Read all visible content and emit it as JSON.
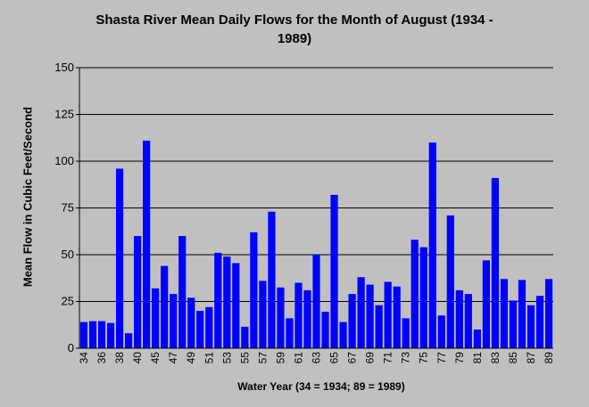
{
  "chart_data": {
    "type": "bar",
    "title": "Shasta River Mean Daily Flows for the Month of August (1934 - 1989)",
    "title_lines": [
      "Shasta River Mean Daily Flows for the Month of August (1934 -",
      "1989)"
    ],
    "xlabel": "Water Year (34 = 1934; 89 = 1989)",
    "ylabel": "Mean Flow in Cubic Feet/Second",
    "ylim": [
      0,
      150
    ],
    "yticks": [
      "0",
      "25",
      "50",
      "75",
      "100",
      "125",
      "150"
    ],
    "grid": true,
    "bar_color": "#0000ff",
    "background_color": "#c0c0c0",
    "categories": [
      "34",
      "35",
      "36",
      "37",
      "38",
      "39",
      "40",
      "44",
      "45",
      "46",
      "47",
      "48",
      "49",
      "50",
      "51",
      "52",
      "53",
      "54",
      "55",
      "56",
      "57",
      "58",
      "59",
      "60",
      "61",
      "62",
      "63",
      "64",
      "65",
      "66",
      "67",
      "68",
      "69",
      "70",
      "71",
      "72",
      "73",
      "74",
      "75",
      "76",
      "77",
      "78",
      "79",
      "80",
      "81",
      "82",
      "83",
      "84",
      "85",
      "86",
      "87",
      "88",
      "89"
    ],
    "tick_labels": [
      "34",
      "36",
      "38",
      "40",
      "45",
      "47",
      "49",
      "51",
      "53",
      "55",
      "57",
      "59",
      "61",
      "63",
      "65",
      "67",
      "69",
      "71",
      "73",
      "75",
      "77",
      "79",
      "81",
      "83",
      "85",
      "87",
      "89"
    ],
    "values": [
      14,
      14.5,
      14.5,
      13.5,
      96,
      8,
      60,
      111,
      32,
      44,
      29,
      60,
      27,
      20,
      22,
      51,
      49,
      45.5,
      11.5,
      62,
      36,
      73,
      32.5,
      16,
      35,
      31,
      50,
      19.5,
      82,
      14,
      29,
      38,
      34,
      23,
      35.5,
      33,
      16,
      58,
      54,
      110,
      17.5,
      71,
      31,
      29,
      10,
      47,
      91,
      37,
      25.5,
      36.5,
      23,
      28,
      37
    ]
  }
}
